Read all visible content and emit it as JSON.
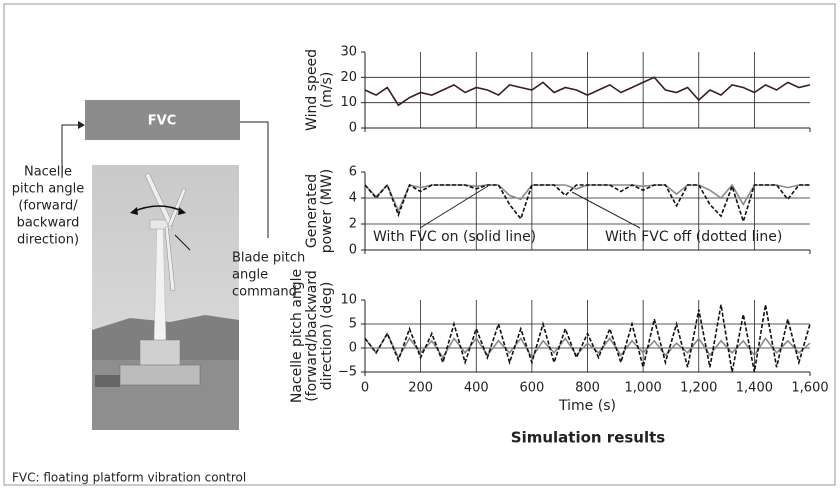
{
  "diagram": {
    "box_label": "FVC",
    "nacelle_label": [
      "Nacelle",
      "pitch angle",
      "(forward/",
      "backward",
      "direction)"
    ],
    "blade_label": [
      "Blade pitch",
      "angle",
      "command"
    ]
  },
  "caption": "Simulation results",
  "footnote": "FVC: floating platform vibration control",
  "chart_data": [
    {
      "type": "line",
      "ylabel": [
        "Wind speed",
        "(m/s)"
      ],
      "x": [
        0,
        40,
        80,
        120,
        160,
        200,
        240,
        280,
        320,
        360,
        400,
        440,
        480,
        520,
        560,
        600,
        640,
        680,
        720,
        760,
        800,
        840,
        880,
        920,
        960,
        1000,
        1040,
        1080,
        1120,
        1160,
        1200,
        1240,
        1280,
        1320,
        1360,
        1400,
        1440,
        1480,
        1520,
        1560,
        1600
      ],
      "series": [
        {
          "color": "#3a1e1e",
          "dash": "none",
          "values": [
            15,
            13,
            16,
            9,
            12,
            14,
            13,
            15,
            17,
            14,
            16,
            15,
            13,
            17,
            16,
            15,
            18,
            14,
            16,
            15,
            13,
            15,
            17,
            14,
            16,
            18,
            20,
            15,
            14,
            16,
            11,
            15,
            13,
            17,
            16,
            14,
            17,
            15,
            18,
            16,
            17
          ]
        }
      ],
      "xlim": [
        0,
        1600
      ],
      "xticks": [
        0,
        200,
        400,
        600,
        800,
        1000,
        1200,
        1400,
        1600
      ],
      "xtick_labels": false,
      "ylim": [
        0,
        30
      ],
      "yticks": [
        0,
        10,
        20,
        30
      ],
      "grid": true
    },
    {
      "type": "line",
      "ylabel": [
        "Generated",
        "power (MW)"
      ],
      "x": [
        0,
        40,
        80,
        120,
        160,
        200,
        240,
        280,
        320,
        360,
        400,
        440,
        480,
        520,
        560,
        600,
        640,
        680,
        720,
        760,
        800,
        840,
        880,
        920,
        960,
        1000,
        1040,
        1080,
        1120,
        1160,
        1200,
        1240,
        1280,
        1320,
        1360,
        1400,
        1440,
        1480,
        1520,
        1560,
        1600
      ],
      "series": [
        {
          "color": "#8a8a8a",
          "dash": "none",
          "values": [
            5,
            4.1,
            5,
            3,
            5,
            4.8,
            5,
            5,
            5,
            5,
            4.9,
            5,
            5,
            4.2,
            3.9,
            5,
            5,
            5,
            5,
            4.7,
            5,
            5,
            5,
            5,
            5,
            4.9,
            5,
            5,
            4.3,
            5,
            5,
            4.6,
            4,
            5,
            3.5,
            5,
            5,
            5,
            4.8,
            5,
            5
          ]
        },
        {
          "color": "#111111",
          "dash": "4 2",
          "values": [
            5,
            4,
            5,
            2.7,
            5,
            4.5,
            5,
            5,
            5,
            5,
            4.7,
            5,
            5,
            3.5,
            2.4,
            5,
            5,
            5,
            4.2,
            5,
            5,
            5,
            5,
            4.5,
            5,
            4.6,
            5,
            5,
            3.4,
            5,
            5,
            3.5,
            2.6,
            4.9,
            2.2,
            5,
            5,
            5,
            3.9,
            5,
            5
          ]
        }
      ],
      "annotations": [
        "With FVC on (solid line)",
        "With FVC off (dotted line)"
      ],
      "xlim": [
        0,
        1600
      ],
      "xticks": [
        0,
        200,
        400,
        600,
        800,
        1000,
        1200,
        1400,
        1600
      ],
      "xtick_labels": false,
      "ylim": [
        0,
        6
      ],
      "yticks": [
        0,
        2,
        4,
        6
      ],
      "grid": true
    },
    {
      "type": "line",
      "ylabel": [
        "Nacelle pitch angle",
        "(forward/backward",
        "direction) (deg)"
      ],
      "xlabel": "Time (s)",
      "x": [
        0,
        40,
        80,
        120,
        160,
        200,
        240,
        280,
        320,
        360,
        400,
        440,
        480,
        520,
        560,
        600,
        640,
        680,
        720,
        760,
        800,
        840,
        880,
        920,
        960,
        1000,
        1040,
        1080,
        1120,
        1160,
        1200,
        1240,
        1280,
        1320,
        1360,
        1400,
        1440,
        1480,
        1520,
        1560,
        1600
      ],
      "series": [
        {
          "color": "#8a8a8a",
          "dash": "none",
          "values": [
            2,
            -1,
            3,
            -2,
            2,
            -1,
            1.5,
            -2,
            2,
            -1,
            2,
            -1.5,
            1.5,
            -1,
            2,
            -2,
            1.5,
            -1,
            2,
            -1.5,
            1,
            -1,
            2,
            -1.5,
            1.5,
            -1,
            1.5,
            -1.5,
            1,
            -1,
            2,
            -1.5,
            1.5,
            -1,
            1.5,
            -1.5,
            2,
            -1,
            1.5,
            -1,
            1
          ]
        },
        {
          "color": "#111111",
          "dash": "4 2",
          "values": [
            2,
            -1,
            3,
            -2.5,
            4,
            -2,
            3,
            -3,
            5,
            -3,
            4,
            -2,
            5,
            -3,
            4,
            -3,
            5,
            -3,
            4,
            -2,
            3,
            -2,
            4,
            -3,
            5,
            -4,
            6,
            -3,
            5,
            -4,
            8,
            -4,
            9,
            -5,
            7,
            -5,
            9,
            -4,
            6,
            -3,
            5
          ]
        }
      ],
      "xlim": [
        0,
        1600
      ],
      "xticks": [
        0,
        200,
        400,
        600,
        800,
        {
          "value": 1000,
          "label": "1,000"
        },
        {
          "value": 1200,
          "label": "1,200"
        },
        {
          "value": 1400,
          "label": "1,400"
        },
        {
          "value": 1600,
          "label": "1,600"
        }
      ],
      "xtick_labels": true,
      "ylim": [
        -5,
        10
      ],
      "yticks": [
        {
          "value": -5,
          "label": "−5"
        },
        0,
        5,
        10
      ],
      "grid": true
    }
  ]
}
